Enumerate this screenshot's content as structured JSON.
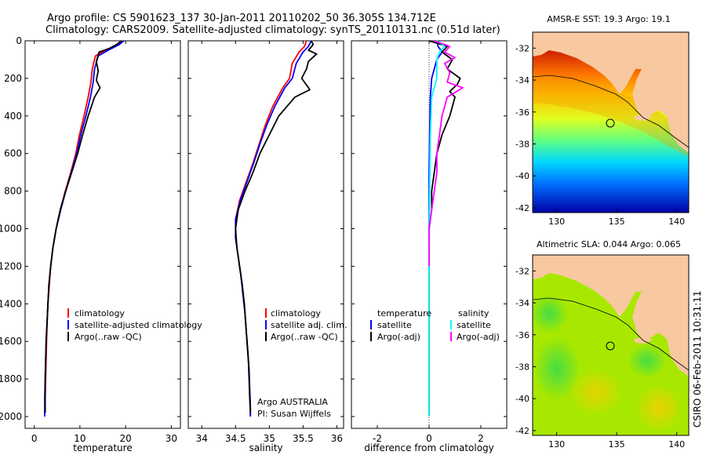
{
  "header": {
    "line1": "Argo profile: CS 5901623_137 30-Jan-2011 20110202_50 36.305S 134.712E",
    "line2": "Climatology: CARS2009. Satellite-adjusted climatology: synTS_20110131.nc (0.51d later)"
  },
  "footer_stamp": "CSIRO 06-Feb-2011 10:31:11",
  "colors": {
    "climatology": "#ff0000",
    "satellite": "#0000ff",
    "argo": "#000000",
    "temp_sat": "#00ffff",
    "sal_argo": "#ff00ff",
    "land": "#f8c8a0"
  },
  "chart_data": [
    {
      "type": "line",
      "panel": "temperature",
      "xlabel": "temperature",
      "ylabel": "",
      "xlim": [
        -2,
        32
      ],
      "ylim": [
        2050,
        0
      ],
      "y_inverted": true,
      "xticks": [
        0,
        10,
        20,
        30
      ],
      "yticks": [
        0,
        200,
        400,
        600,
        800,
        1000,
        1200,
        1400,
        1600,
        1800,
        2000
      ],
      "legend": [
        "climatology",
        "satellite-adjusted climatology",
        "Argo(..raw -QC)"
      ],
      "legend_placement": "lower-right",
      "series": [
        {
          "name": "climatology",
          "color": "#ff0000",
          "points": [
            [
              19.3,
              0
            ],
            [
              18.2,
              20
            ],
            [
              15.6,
              50
            ],
            [
              13.4,
              80
            ],
            [
              12.7,
              150
            ],
            [
              12.4,
              220
            ],
            [
              11.8,
              300
            ],
            [
              10.9,
              400
            ],
            [
              9.9,
              500
            ],
            [
              9.1,
              600
            ],
            [
              8.0,
              700
            ],
            [
              6.8,
              800
            ],
            [
              5.7,
              900
            ],
            [
              4.8,
              1000
            ],
            [
              4.1,
              1100
            ],
            [
              3.6,
              1200
            ],
            [
              3.3,
              1300
            ],
            [
              3.0,
              1400
            ],
            [
              2.8,
              1500
            ],
            [
              2.7,
              1600
            ],
            [
              2.6,
              1700
            ],
            [
              2.5,
              1800
            ],
            [
              2.4,
              1900
            ],
            [
              2.4,
              1980
            ]
          ]
        },
        {
          "name": "satellite-adjusted climatology",
          "color": "#0000ff",
          "points": [
            [
              19.6,
              0
            ],
            [
              18.6,
              20
            ],
            [
              16.2,
              50
            ],
            [
              14.0,
              80
            ],
            [
              13.2,
              150
            ],
            [
              12.9,
              220
            ],
            [
              12.3,
              300
            ],
            [
              11.3,
              400
            ],
            [
              10.2,
              500
            ],
            [
              9.3,
              600
            ],
            [
              8.1,
              700
            ],
            [
              6.9,
              800
            ],
            [
              5.8,
              900
            ],
            [
              4.8,
              1000
            ],
            [
              4.1,
              1100
            ],
            [
              3.6,
              1200
            ],
            [
              3.2,
              1300
            ],
            [
              3.0,
              1400
            ],
            [
              2.8,
              1500
            ],
            [
              2.6,
              1600
            ],
            [
              2.5,
              1700
            ],
            [
              2.4,
              1800
            ],
            [
              2.3,
              1900
            ],
            [
              2.3,
              2000
            ]
          ]
        },
        {
          "name": "Argo(..raw -QC)",
          "color": "#000000",
          "points": [
            [
              19.1,
              0
            ],
            [
              18.0,
              20
            ],
            [
              16.5,
              40
            ],
            [
              14.2,
              60
            ],
            [
              13.6,
              110
            ],
            [
              14.0,
              160
            ],
            [
              13.6,
              210
            ],
            [
              14.4,
              250
            ],
            [
              13.2,
              300
            ],
            [
              11.8,
              400
            ],
            [
              10.6,
              500
            ],
            [
              9.5,
              600
            ],
            [
              8.2,
              700
            ],
            [
              6.9,
              800
            ],
            [
              5.7,
              900
            ],
            [
              4.8,
              1000
            ],
            [
              4.1,
              1100
            ],
            [
              3.6,
              1200
            ],
            [
              3.2,
              1300
            ],
            [
              3.0,
              1400
            ],
            [
              2.8,
              1500
            ],
            [
              2.6,
              1600
            ],
            [
              2.5,
              1700
            ],
            [
              2.4,
              1800
            ],
            [
              2.4,
              1900
            ],
            [
              2.4,
              1980
            ]
          ]
        }
      ]
    },
    {
      "type": "line",
      "panel": "salinity",
      "xlabel": "salinity",
      "ylabel": "",
      "xlim": [
        33.8,
        36.1
      ],
      "ylim": [
        2050,
        0
      ],
      "y_inverted": true,
      "xticks": [
        34,
        34.5,
        35,
        35.5,
        36
      ],
      "legend": [
        "climatology",
        "satellite adj. clim.",
        "Argo(..raw -QC)"
      ],
      "legend_placement": "lower-right",
      "annotations": [
        "Argo AUSTRALIA",
        "PI: Susan Wijffels"
      ],
      "series": [
        {
          "name": "climatology",
          "color": "#ff0000",
          "points": [
            [
              35.55,
              0
            ],
            [
              35.52,
              30
            ],
            [
              35.44,
              60
            ],
            [
              35.34,
              120
            ],
            [
              35.3,
              200
            ],
            [
              35.2,
              250
            ],
            [
              35.05,
              350
            ],
            [
              34.94,
              450
            ],
            [
              34.85,
              550
            ],
            [
              34.76,
              650
            ],
            [
              34.66,
              750
            ],
            [
              34.56,
              850
            ],
            [
              34.5,
              950
            ],
            [
              34.5,
              1050
            ],
            [
              34.54,
              1150
            ],
            [
              34.58,
              1250
            ],
            [
              34.61,
              1350
            ],
            [
              34.64,
              1450
            ],
            [
              34.66,
              1550
            ],
            [
              34.68,
              1650
            ],
            [
              34.7,
              1750
            ],
            [
              34.71,
              1850
            ],
            [
              34.72,
              1950
            ],
            [
              34.72,
              2000
            ]
          ]
        },
        {
          "name": "satellite adj. clim.",
          "color": "#0000ff",
          "points": [
            [
              35.62,
              0
            ],
            [
              35.58,
              30
            ],
            [
              35.5,
              60
            ],
            [
              35.4,
              120
            ],
            [
              35.34,
              200
            ],
            [
              35.23,
              250
            ],
            [
              35.08,
              350
            ],
            [
              34.96,
              450
            ],
            [
              34.86,
              550
            ],
            [
              34.77,
              650
            ],
            [
              34.67,
              750
            ],
            [
              34.57,
              850
            ],
            [
              34.5,
              950
            ],
            [
              34.5,
              1050
            ],
            [
              34.54,
              1150
            ],
            [
              34.58,
              1250
            ],
            [
              34.61,
              1350
            ],
            [
              34.64,
              1450
            ],
            [
              34.66,
              1550
            ],
            [
              34.68,
              1650
            ],
            [
              34.7,
              1750
            ],
            [
              34.71,
              1850
            ],
            [
              34.72,
              1950
            ],
            [
              34.72,
              2000
            ]
          ]
        },
        {
          "name": "Argo(..raw -QC)",
          "color": "#000000",
          "points": [
            [
              35.62,
              0
            ],
            [
              35.65,
              20
            ],
            [
              35.58,
              50
            ],
            [
              35.7,
              70
            ],
            [
              35.58,
              110
            ],
            [
              35.55,
              150
            ],
            [
              35.48,
              200
            ],
            [
              35.6,
              260
            ],
            [
              35.38,
              300
            ],
            [
              35.14,
              400
            ],
            [
              35.0,
              500
            ],
            [
              34.86,
              600
            ],
            [
              34.76,
              700
            ],
            [
              34.64,
              800
            ],
            [
              34.54,
              900
            ],
            [
              34.5,
              1000
            ],
            [
              34.52,
              1100
            ],
            [
              34.56,
              1200
            ],
            [
              34.6,
              1300
            ],
            [
              34.63,
              1400
            ],
            [
              34.65,
              1500
            ],
            [
              34.67,
              1600
            ],
            [
              34.69,
              1700
            ],
            [
              34.7,
              1800
            ],
            [
              34.71,
              1900
            ],
            [
              34.72,
              1980
            ]
          ]
        }
      ]
    },
    {
      "type": "line",
      "panel": "difference",
      "xlabel": "difference from climatology",
      "ylabel": "",
      "xlim": [
        -3,
        3
      ],
      "ylim": [
        2050,
        0
      ],
      "y_inverted": true,
      "xticks": [
        -2,
        0,
        2
      ],
      "legend_titles": [
        "temperature",
        "salinity"
      ],
      "legend": [
        "satellite",
        "Argo(-adj)",
        "satellite",
        "Argo(-adj)"
      ],
      "legend_placement": "lower-right",
      "series": [
        {
          "name": "temperature satellite",
          "color": "#0000ff",
          "points": [
            [
              0.3,
              0
            ],
            [
              0.35,
              30
            ],
            [
              0.5,
              60
            ],
            [
              0.3,
              100
            ],
            [
              0.1,
              200
            ],
            [
              0.05,
              300
            ],
            [
              0.02,
              500
            ],
            [
              0.0,
              700
            ],
            [
              0.0,
              900
            ],
            [
              0.0,
              1200
            ],
            [
              0.0,
              1500
            ],
            [
              0.0,
              1800
            ],
            [
              0.0,
              2000
            ]
          ]
        },
        {
          "name": "temperature Argo(-adj)",
          "color": "#000000",
          "points": [
            [
              0.0,
              0
            ],
            [
              0.7,
              30
            ],
            [
              0.5,
              60
            ],
            [
              0.9,
              100
            ],
            [
              0.7,
              150
            ],
            [
              1.2,
              200
            ],
            [
              1.1,
              230
            ],
            [
              0.8,
              270
            ],
            [
              1.0,
              300
            ],
            [
              0.8,
              400
            ],
            [
              0.5,
              500
            ],
            [
              0.3,
              600
            ],
            [
              0.2,
              700
            ],
            [
              0.1,
              800
            ],
            [
              0.1,
              900
            ],
            [
              0.0,
              1000
            ],
            [
              0.0,
              1200
            ],
            [
              0.0,
              1500
            ],
            [
              0.0,
              1800
            ],
            [
              0.0,
              1980
            ]
          ]
        },
        {
          "name": "salinity satellite",
          "color": "#00ffff",
          "points": [
            [
              0.3,
              0
            ],
            [
              0.6,
              30
            ],
            [
              0.4,
              60
            ],
            [
              0.3,
              100
            ],
            [
              0.3,
              200
            ],
            [
              0.1,
              300
            ],
            [
              0.05,
              500
            ],
            [
              0.02,
              800
            ],
            [
              0.0,
              1100
            ],
            [
              0.0,
              1400
            ],
            [
              0.0,
              1700
            ],
            [
              0.0,
              2000
            ]
          ]
        },
        {
          "name": "salinity Argo(-adj)",
          "color": "#ff00ff",
          "points": [
            [
              0.2,
              0
            ],
            [
              0.8,
              30
            ],
            [
              0.6,
              60
            ],
            [
              1.0,
              90
            ],
            [
              0.6,
              120
            ],
            [
              0.8,
              170
            ],
            [
              0.7,
              220
            ],
            [
              1.3,
              250
            ],
            [
              0.7,
              300
            ],
            [
              0.5,
              400
            ],
            [
              0.4,
              500
            ],
            [
              0.3,
              600
            ],
            [
              0.3,
              700
            ],
            [
              0.2,
              800
            ],
            [
              0.1,
              900
            ],
            [
              0.0,
              1000
            ],
            [
              0.0,
              1100
            ],
            [
              0.0,
              1200
            ]
          ]
        }
      ]
    },
    {
      "type": "heatmap",
      "panel": "sst_map",
      "title": "AMSR-E SST: 19.3 Argo: 19.1",
      "xlim": [
        128,
        141
      ],
      "ylim": [
        -42.3,
        -31
      ],
      "xticks": [
        130,
        135,
        140
      ],
      "yticks": [
        -32,
        -34,
        -36,
        -38,
        -40,
        -42
      ],
      "argo_position": {
        "lon": 134.712,
        "lat": -36.305
      }
    },
    {
      "type": "heatmap",
      "panel": "sla_map",
      "title": "Altimetric SLA: 0.044 Argo: 0.065",
      "xlim": [
        128,
        141
      ],
      "ylim": [
        -42.3,
        -31
      ],
      "xticks": [
        130,
        135,
        140
      ],
      "yticks": [
        -32,
        -34,
        -36,
        -38,
        -40,
        -42
      ],
      "argo_position": {
        "lon": 134.712,
        "lat": -36.305
      }
    }
  ]
}
